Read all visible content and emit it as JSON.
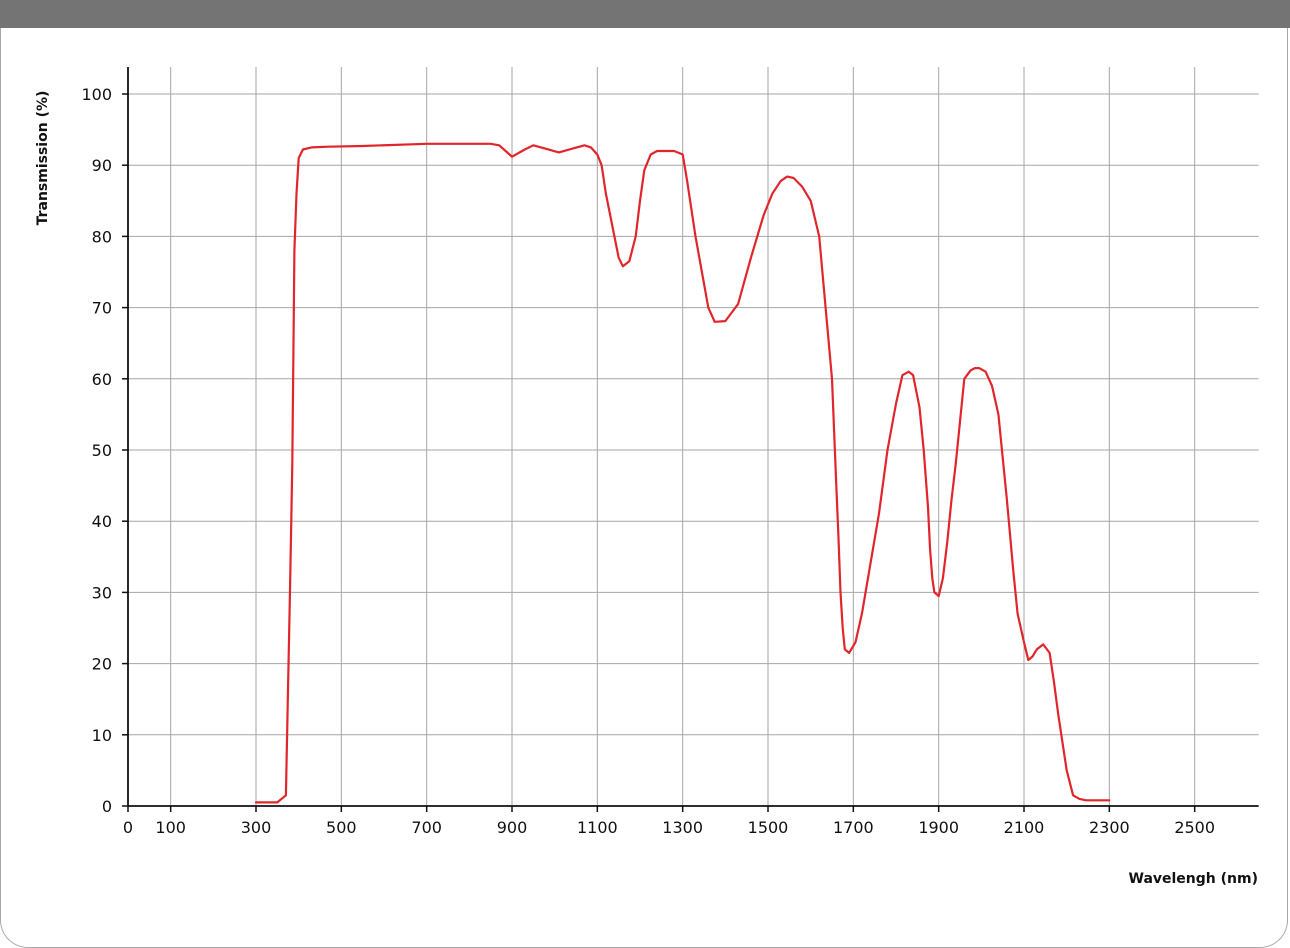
{
  "chart_data": {
    "type": "line",
    "title": "",
    "xlabel": "Wavelengh (nm)",
    "ylabel": "Transmission (%)",
    "xlim": [
      0,
      2650
    ],
    "ylim": [
      0,
      100
    ],
    "x_ticks": [
      0,
      100,
      300,
      500,
      700,
      900,
      1100,
      1300,
      1500,
      1700,
      1900,
      2100,
      2300,
      2500
    ],
    "y_ticks": [
      0,
      10,
      20,
      30,
      40,
      50,
      60,
      70,
      80,
      90,
      100
    ],
    "grid": true,
    "colors": {
      "line": "#e0262b",
      "grid": "#a6a6a6",
      "axis": "#111111",
      "header": "#747474"
    },
    "series": [
      {
        "x": [
          300,
          350,
          370,
          380,
          385,
          390,
          395,
          400,
          410,
          430,
          470,
          550,
          700,
          850,
          870,
          900,
          930,
          950,
          980,
          1010,
          1040,
          1070,
          1085,
          1100,
          1110,
          1120,
          1140,
          1150,
          1160,
          1175,
          1190,
          1200,
          1210,
          1225,
          1240,
          1260,
          1280,
          1300,
          1310,
          1320,
          1330,
          1345,
          1360,
          1375,
          1400,
          1430,
          1460,
          1490,
          1510,
          1530,
          1545,
          1560,
          1580,
          1600,
          1620,
          1635,
          1650,
          1660,
          1665,
          1670,
          1675,
          1680,
          1690,
          1705,
          1720,
          1740,
          1760,
          1780,
          1800,
          1815,
          1830,
          1840,
          1855,
          1865,
          1875,
          1880,
          1885,
          1890,
          1900,
          1910,
          1920,
          1930,
          1940,
          1960,
          1975,
          1985,
          1995,
          2010,
          2025,
          2040,
          2060,
          2075,
          2085,
          2100,
          2110,
          2120,
          2130,
          2145,
          2160,
          2170,
          2180,
          2190,
          2200,
          2215,
          2230,
          2245,
          2265,
          2300
        ],
        "y": [
          0.5,
          0.5,
          1.5,
          31,
          48,
          78,
          86,
          91,
          92.2,
          92.5,
          92.6,
          92.7,
          93,
          93,
          92.8,
          91.2,
          92.2,
          92.8,
          92.3,
          91.8,
          92.3,
          92.8,
          92.5,
          91.5,
          90,
          86,
          80,
          77,
          75.8,
          76.5,
          80,
          85,
          89.3,
          91.5,
          92,
          92,
          92,
          91.5,
          88,
          84,
          80,
          75,
          70,
          68,
          68.1,
          70.5,
          77,
          83,
          86,
          87.8,
          88.4,
          88.2,
          87,
          85,
          80,
          70,
          60,
          45,
          38,
          30,
          25,
          22,
          21.5,
          23,
          27,
          34,
          41,
          50,
          56.5,
          60.5,
          61,
          60.5,
          56,
          50,
          42,
          36,
          32,
          30,
          29.5,
          32,
          37,
          43,
          48,
          60,
          61.2,
          61.5,
          61.5,
          61,
          59,
          55,
          43,
          33,
          27,
          23,
          20.5,
          21,
          22,
          22.7,
          21.5,
          17.5,
          13,
          9,
          5,
          1.5,
          1,
          0.8,
          0.8,
          0.8
        ]
      }
    ]
  }
}
